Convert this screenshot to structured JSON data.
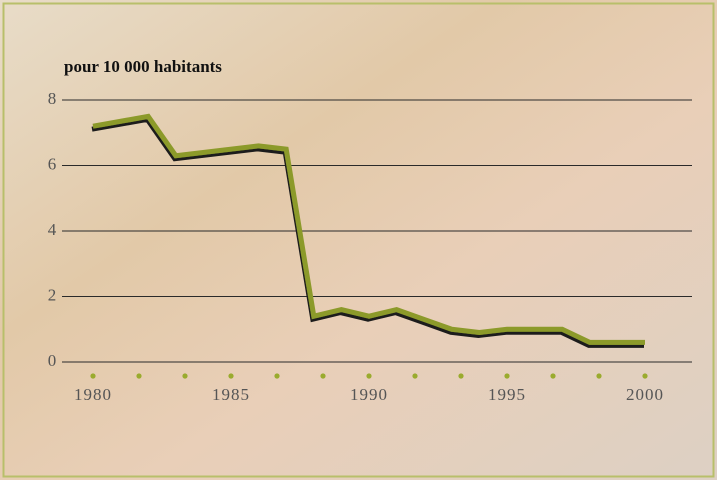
{
  "chart_data": {
    "type": "line",
    "title": "pour 10 000 habitants",
    "x": [
      1980,
      1982,
      1983,
      1986,
      1987,
      1988,
      1989,
      1990,
      1991,
      1992,
      1993,
      1994,
      1995,
      1996,
      1997,
      1998,
      1999,
      2000
    ],
    "series": [
      {
        "color": "#8c9a2c",
        "values": [
          7.2,
          7.5,
          6.3,
          6.6,
          6.5,
          1.4,
          1.6,
          1.4,
          1.6,
          1.3,
          1.0,
          0.9,
          1.0,
          1.0,
          1.0,
          0.6,
          0.6,
          0.6
        ]
      }
    ],
    "xlim": [
      1980,
      2000
    ],
    "xticks": [
      1980,
      1985,
      1990,
      1995,
      2000
    ],
    "ylim": [
      0,
      8
    ],
    "yticks": [
      0,
      2,
      4,
      6,
      8
    ],
    "grid": true
  }
}
